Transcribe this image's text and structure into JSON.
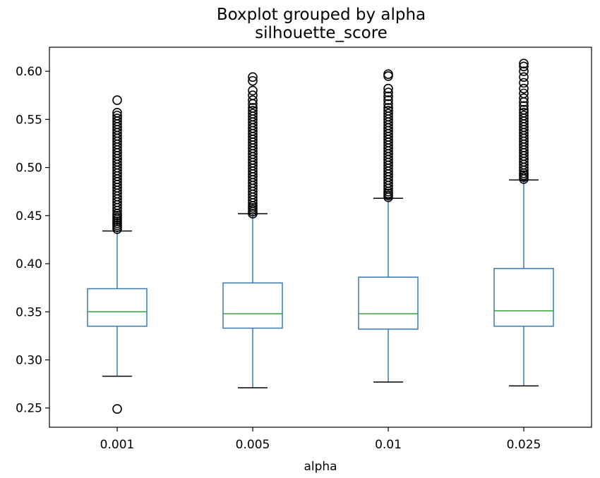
{
  "chart_data": {
    "type": "box",
    "title": "Boxplot grouped by alpha",
    "subtitle": "silhouette_score",
    "xlabel": "alpha",
    "ylabel": "",
    "categories": [
      "0.001",
      "0.005",
      "0.01",
      "0.025"
    ],
    "ylim": [
      0.23,
      0.625
    ],
    "yticks": [
      0.25,
      0.3,
      0.35,
      0.4,
      0.45,
      0.5,
      0.55,
      0.6
    ],
    "ytick_labels": [
      "0.25",
      "0.30",
      "0.35",
      "0.40",
      "0.45",
      "0.50",
      "0.55",
      "0.60"
    ],
    "grid": false,
    "boxes": [
      {
        "category": "0.001",
        "whisker_low": 0.283,
        "q1": 0.335,
        "median": 0.35,
        "q3": 0.374,
        "whisker_high": 0.434,
        "outliers": [
          0.249,
          0.436,
          0.438,
          0.44,
          0.442,
          0.444,
          0.446,
          0.448,
          0.45,
          0.452,
          0.455,
          0.458,
          0.461,
          0.464,
          0.467,
          0.47,
          0.473,
          0.476,
          0.479,
          0.482,
          0.485,
          0.488,
          0.491,
          0.494,
          0.497,
          0.5,
          0.503,
          0.506,
          0.509,
          0.512,
          0.515,
          0.518,
          0.521,
          0.524,
          0.527,
          0.53,
          0.533,
          0.536,
          0.539,
          0.542,
          0.545,
          0.548,
          0.551,
          0.554,
          0.557,
          0.57
        ]
      },
      {
        "category": "0.005",
        "whisker_low": 0.271,
        "q1": 0.333,
        "median": 0.348,
        "q3": 0.38,
        "whisker_high": 0.452,
        "outliers": [
          0.452,
          0.454,
          0.456,
          0.458,
          0.46,
          0.463,
          0.466,
          0.469,
          0.472,
          0.475,
          0.478,
          0.481,
          0.484,
          0.487,
          0.49,
          0.493,
          0.496,
          0.499,
          0.502,
          0.505,
          0.508,
          0.511,
          0.514,
          0.517,
          0.52,
          0.523,
          0.526,
          0.529,
          0.532,
          0.535,
          0.538,
          0.541,
          0.544,
          0.547,
          0.55,
          0.553,
          0.556,
          0.559,
          0.562,
          0.566,
          0.57,
          0.575,
          0.58,
          0.59,
          0.594
        ]
      },
      {
        "category": "0.01",
        "whisker_low": 0.277,
        "q1": 0.332,
        "median": 0.348,
        "q3": 0.386,
        "whisker_high": 0.468,
        "outliers": [
          0.469,
          0.471,
          0.473,
          0.475,
          0.478,
          0.481,
          0.484,
          0.487,
          0.49,
          0.493,
          0.496,
          0.499,
          0.502,
          0.505,
          0.508,
          0.511,
          0.514,
          0.517,
          0.52,
          0.523,
          0.526,
          0.529,
          0.532,
          0.535,
          0.538,
          0.541,
          0.544,
          0.547,
          0.55,
          0.553,
          0.556,
          0.559,
          0.562,
          0.566,
          0.57,
          0.574,
          0.578,
          0.582,
          0.595,
          0.597
        ]
      },
      {
        "category": "0.025",
        "whisker_low": 0.273,
        "q1": 0.335,
        "median": 0.351,
        "q3": 0.395,
        "whisker_high": 0.487,
        "outliers": [
          0.488,
          0.49,
          0.492,
          0.494,
          0.497,
          0.5,
          0.503,
          0.506,
          0.509,
          0.512,
          0.515,
          0.518,
          0.521,
          0.524,
          0.527,
          0.53,
          0.533,
          0.536,
          0.539,
          0.542,
          0.545,
          0.548,
          0.551,
          0.554,
          0.557,
          0.56,
          0.564,
          0.568,
          0.572,
          0.577,
          0.582,
          0.588,
          0.594,
          0.6,
          0.605,
          0.608
        ]
      }
    ],
    "colors": {
      "box": "#3a78b5",
      "whisker": "#3a78b5",
      "cap": "#000000",
      "median": "#3aa13a",
      "outlier": "#000000"
    }
  }
}
